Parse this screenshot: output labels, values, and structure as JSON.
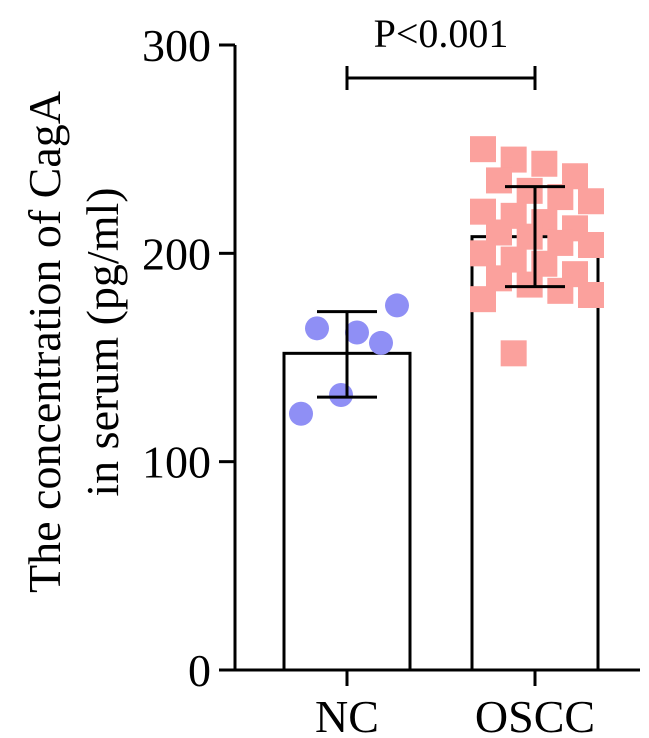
{
  "chart_data": {
    "type": "bar",
    "title": "",
    "xlabel": "",
    "ylabel_lines": [
      "The concentration of CagA",
      "in serum (pg/ml)"
    ],
    "ylim": [
      0,
      300
    ],
    "yticks": [
      0,
      100,
      200,
      300
    ],
    "categories": [
      "NC",
      "OSCC"
    ],
    "bars": [
      {
        "category": "NC",
        "mean": 152,
        "error_low": 131,
        "error_high": 172,
        "marker": "circle",
        "color": "#8f8ff5",
        "points": [
          123,
          132,
          157,
          164,
          162,
          175
        ]
      },
      {
        "category": "OSCC",
        "mean": 208,
        "error_low": 184,
        "error_high": 232,
        "marker": "square",
        "color": "#fba19d",
        "points": [
          250,
          245,
          243,
          237,
          235,
          230,
          227,
          225,
          220,
          218,
          215,
          212,
          210,
          208,
          205,
          204,
          200,
          197,
          195,
          190,
          188,
          185,
          182,
          180,
          178,
          152
        ]
      }
    ],
    "annotation": {
      "text": "P<0.001",
      "between": [
        "NC",
        "OSCC"
      ]
    },
    "grid": false,
    "legend": "none"
  }
}
